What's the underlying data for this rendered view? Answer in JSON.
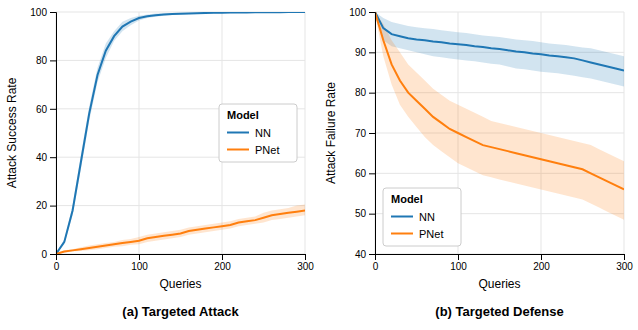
{
  "chart_data": [
    {
      "type": "line",
      "title": "(a) Targeted Attack",
      "xlabel": "Queries",
      "ylabel": "Attack Success Rate",
      "legend_title": "Model",
      "legend": "right",
      "grid": true,
      "x": [
        0,
        10,
        20,
        30,
        40,
        50,
        60,
        70,
        80,
        90,
        100,
        110,
        120,
        130,
        140,
        150,
        160,
        170,
        180,
        190,
        200,
        210,
        220,
        230,
        240,
        250,
        260,
        270,
        280,
        290,
        300
      ],
      "xlim": [
        0,
        300
      ],
      "xticks": [
        0,
        100,
        200,
        300
      ],
      "ylim": [
        0,
        100
      ],
      "yticks": [
        0,
        20,
        40,
        60,
        80,
        100
      ],
      "series": [
        {
          "name": "NN",
          "values": [
            0,
            5,
            18,
            38,
            58,
            74,
            84,
            90,
            94,
            96,
            97.5,
            98.2,
            98.7,
            99.0,
            99.2,
            99.3,
            99.4,
            99.5,
            99.6,
            99.7,
            99.7,
            99.8,
            99.8,
            99.8,
            99.9,
            99.9,
            99.9,
            99.9,
            100,
            100,
            100
          ],
          "low": [
            0,
            4,
            16,
            35,
            55,
            71,
            81,
            88,
            92,
            94.5,
            96.5,
            97.5,
            98.0,
            98.5,
            98.8,
            99.0,
            99.1,
            99.2,
            99.3,
            99.4,
            99.5,
            99.5,
            99.6,
            99.6,
            99.7,
            99.7,
            99.8,
            99.8,
            99.9,
            99.9,
            100
          ],
          "high": [
            0,
            6,
            20,
            41,
            61,
            77,
            87,
            92,
            96,
            97.5,
            98.5,
            99.0,
            99.4,
            99.5,
            99.6,
            99.7,
            99.7,
            99.8,
            99.9,
            100,
            100,
            100,
            100,
            100,
            100,
            100,
            100,
            100,
            100,
            100,
            100
          ]
        },
        {
          "name": "PNet",
          "values": [
            0,
            1,
            1.5,
            2,
            2.5,
            3,
            3.5,
            4,
            4.5,
            5,
            5.5,
            6.5,
            7,
            7.5,
            8,
            8.5,
            9.5,
            10,
            10.5,
            11,
            11.5,
            12,
            13,
            13.5,
            14,
            15,
            16,
            16.5,
            17,
            17.5,
            18
          ],
          "low": [
            0,
            0.5,
            1,
            1.2,
            1.5,
            2,
            2.5,
            3,
            3.2,
            3.8,
            4,
            5,
            5.5,
            6,
            6.5,
            7,
            8,
            8.5,
            9,
            9.5,
            10,
            10.5,
            11.5,
            12,
            12.5,
            13,
            14,
            14.5,
            15,
            15.5,
            16
          ],
          "high": [
            0.5,
            1.5,
            2,
            2.8,
            3.5,
            4,
            4.5,
            5,
            5.8,
            6.2,
            7,
            8,
            8.5,
            9,
            9.5,
            10,
            11,
            11.5,
            12,
            12.5,
            13,
            13.5,
            14.5,
            15,
            15.5,
            17,
            18,
            18.5,
            19,
            20,
            20.5
          ]
        }
      ]
    },
    {
      "type": "line",
      "title": "(b) Targeted Defense",
      "xlabel": "Queries",
      "ylabel": "Attack Failure Rate",
      "legend_title": "Model",
      "legend": "lower left",
      "grid": true,
      "x": [
        0,
        10,
        20,
        30,
        40,
        50,
        60,
        70,
        80,
        90,
        100,
        110,
        120,
        130,
        140,
        150,
        160,
        170,
        180,
        190,
        200,
        210,
        220,
        230,
        240,
        250,
        260,
        270,
        280,
        290,
        300
      ],
      "xlim": [
        0,
        300
      ],
      "xticks": [
        0,
        100,
        200,
        300
      ],
      "ylim": [
        40,
        100
      ],
      "yticks": [
        40,
        50,
        60,
        70,
        80,
        90,
        100
      ],
      "series": [
        {
          "name": "NN",
          "values": [
            100,
            96,
            94.5,
            94.0,
            93.5,
            93.2,
            93.0,
            92.7,
            92.5,
            92.2,
            92.0,
            91.8,
            91.5,
            91.3,
            91.0,
            90.8,
            90.5,
            90.2,
            90.0,
            89.7,
            89.5,
            89.2,
            89.0,
            88.8,
            88.5,
            88.0,
            87.5,
            87.0,
            86.5,
            86.0,
            85.5
          ],
          "low": [
            99,
            93,
            91.5,
            91.0,
            90.5,
            90.0,
            89.5,
            89.0,
            88.8,
            88.5,
            88.2,
            88.0,
            87.8,
            87.5,
            87.2,
            87.0,
            86.5,
            86.0,
            85.8,
            85.5,
            85.2,
            85.0,
            84.8,
            84.5,
            84.2,
            83.8,
            83.5,
            83.0,
            82.5,
            82.0,
            81.5
          ],
          "high": [
            100,
            98.5,
            97.5,
            97.0,
            96.5,
            96.2,
            96.0,
            95.8,
            95.5,
            95.2,
            95.0,
            94.8,
            94.5,
            94.2,
            94.0,
            93.8,
            93.5,
            93.2,
            93.0,
            92.8,
            92.5,
            92.2,
            92.0,
            91.8,
            91.5,
            91.2,
            91.0,
            90.5,
            90.0,
            89.5,
            89.0
          ]
        },
        {
          "name": "PNet",
          "values": [
            100,
            93,
            87,
            83,
            80,
            78,
            76,
            74,
            72.5,
            71,
            70,
            69,
            68,
            67,
            66.5,
            66,
            65.5,
            65,
            64.5,
            64,
            63.5,
            63,
            62.5,
            62,
            61.5,
            61,
            60,
            59,
            58,
            57,
            56
          ],
          "low": [
            99.5,
            89,
            82,
            77,
            74,
            71.5,
            69,
            67,
            65.5,
            64,
            62.5,
            61.5,
            60.5,
            59.5,
            59,
            58.5,
            58,
            57.5,
            57,
            56.5,
            56,
            55.5,
            55,
            54.5,
            54,
            53.5,
            52.5,
            51.5,
            50.5,
            49.5,
            48.5
          ],
          "high": [
            100,
            97,
            93,
            90,
            87,
            85,
            83,
            81,
            79.5,
            78,
            77,
            76,
            75,
            74,
            73,
            72.5,
            72,
            71.5,
            71,
            70.5,
            70,
            69.5,
            69,
            68.5,
            68,
            67.5,
            67,
            66,
            65,
            64,
            63
          ]
        }
      ]
    }
  ]
}
